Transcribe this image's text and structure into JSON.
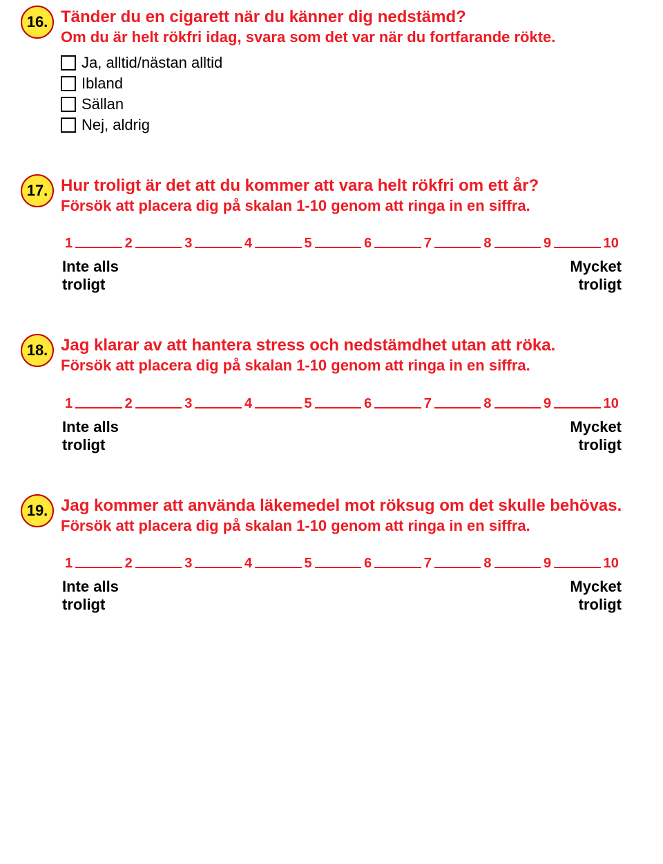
{
  "colors": {
    "badge_fill": "#ffe838",
    "badge_border": "#c00000",
    "badge_text": "#000000",
    "question_text": "#ed1c24",
    "subtitle_text": "#ed1c24",
    "scale_color": "#ed1c24",
    "scale_label_color": "#000000",
    "option_text": "#000000",
    "background": "#ffffff"
  },
  "questions": [
    {
      "number": "16.",
      "title": "Tänder du en cigarett när du känner dig nedstämd?",
      "subtitle": "Om du är helt rökfri idag, svara som det var när du fortfarande rökte.",
      "type": "options",
      "options": [
        "Ja, alltid/nästan alltid",
        "Ibland",
        "Sällan",
        "Nej, aldrig"
      ]
    },
    {
      "number": "17.",
      "title": "Hur troligt är det att du kommer att vara helt rökfri om ett år?",
      "subtitle": "Försök att placera dig på skalan 1-10 genom att ringa in en siffra.",
      "type": "scale",
      "scale": {
        "values": [
          "1",
          "2",
          "3",
          "4",
          "5",
          "6",
          "7",
          "8",
          "9",
          "10"
        ],
        "left_label_line1": "Inte alls",
        "left_label_line2": "troligt",
        "right_label_line1": "Mycket",
        "right_label_line2": "troligt"
      }
    },
    {
      "number": "18.",
      "title": "Jag klarar av att hantera stress och nedstämdhet utan att röka.",
      "subtitle": "Försök att placera dig på skalan 1-10 genom att ringa in en siffra.",
      "type": "scale",
      "scale": {
        "values": [
          "1",
          "2",
          "3",
          "4",
          "5",
          "6",
          "7",
          "8",
          "9",
          "10"
        ],
        "left_label_line1": "Inte alls",
        "left_label_line2": "troligt",
        "right_label_line1": "Mycket",
        "right_label_line2": "troligt"
      }
    },
    {
      "number": "19.",
      "title": "Jag kommer att använda läkemedel mot röksug om det skulle behövas.",
      "subtitle": "Försök att placera dig på skalan 1-10 genom att ringa in en siffra.",
      "type": "scale",
      "scale": {
        "values": [
          "1",
          "2",
          "3",
          "4",
          "5",
          "6",
          "7",
          "8",
          "9",
          "10"
        ],
        "left_label_line1": "Inte alls",
        "left_label_line2": "troligt",
        "right_label_line1": "Mycket",
        "right_label_line2": "troligt"
      }
    }
  ]
}
